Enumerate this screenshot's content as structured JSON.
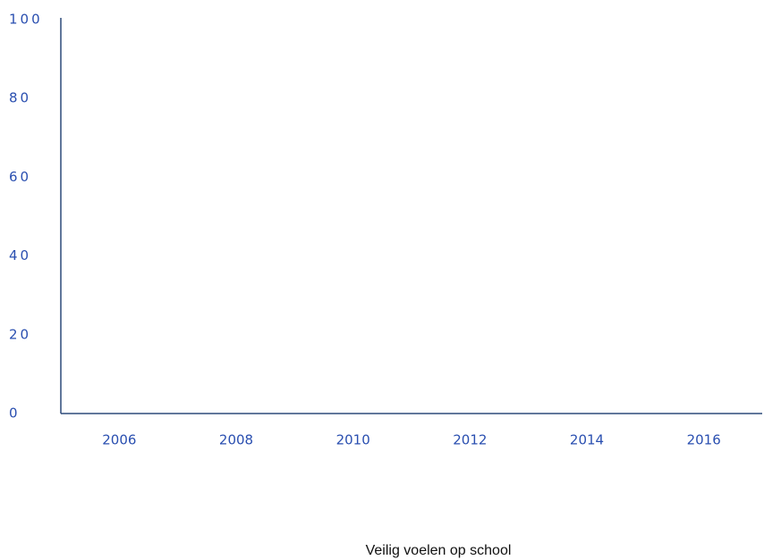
{
  "chart_data": {
    "type": "line",
    "categories": [
      "2006",
      "2008",
      "2010",
      "2012",
      "2014",
      "2016"
    ],
    "series": [
      {
        "name": "Veilig voelen op school",
        "values": [
          null,
          null,
          null,
          null,
          null,
          null
        ]
      }
    ],
    "ylim": [
      0,
      100
    ],
    "yticks": [
      0,
      20,
      40,
      60,
      80,
      100
    ]
  }
}
